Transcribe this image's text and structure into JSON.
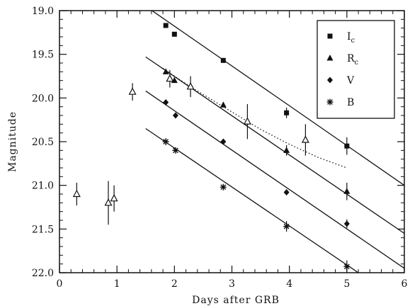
{
  "chart_data": {
    "type": "scatter",
    "title": "",
    "xlabel": "Days after GRB",
    "ylabel": "Magnitude",
    "xlim": [
      0,
      6
    ],
    "ylim": [
      22.0,
      19.0
    ],
    "y_inverted": true,
    "x_ticks": [
      "0",
      "1",
      "2",
      "3",
      "4",
      "5",
      "6"
    ],
    "y_ticks": [
      "19.0",
      "19.5",
      "20.0",
      "20.5",
      "21.0",
      "21.5",
      "22.0"
    ],
    "grid": false,
    "legend_position": "top-right",
    "legend": [
      {
        "name": "I",
        "sub": "c",
        "marker": "square"
      },
      {
        "name": "R",
        "sub": "c",
        "marker": "triangle"
      },
      {
        "name": "V",
        "sub": "",
        "marker": "diamond"
      },
      {
        "name": "B",
        "sub": "",
        "marker": "asterisk"
      }
    ],
    "series": [
      {
        "key": "Ic",
        "marker": "square",
        "x": [
          1.85,
          2.0,
          2.85,
          3.95,
          5.0
        ],
        "y": [
          19.17,
          19.27,
          19.57,
          20.17,
          20.55
        ],
        "err": [
          0,
          0,
          0,
          0.06,
          0.1
        ],
        "fit": [
          [
            1.5,
            18.95
          ],
          [
            6.0,
            21.0
          ]
        ]
      },
      {
        "key": "Rc",
        "marker": "triangle",
        "x": [
          1.85,
          2.0,
          2.85,
          3.95,
          5.0
        ],
        "y": [
          19.7,
          19.8,
          20.08,
          20.6,
          21.07
        ],
        "err": [
          0,
          0,
          0,
          0.06,
          0.1
        ],
        "fit": [
          [
            1.5,
            19.53
          ],
          [
            6.0,
            21.55
          ]
        ]
      },
      {
        "key": "Rc_open",
        "marker": "open-triangle",
        "x": [
          0.3,
          0.85,
          0.95,
          1.27,
          1.92,
          2.28,
          3.27,
          4.28
        ],
        "y": [
          21.1,
          21.2,
          21.15,
          19.93,
          19.78,
          19.87,
          20.27,
          20.48
        ],
        "err": [
          0.13,
          0.25,
          0.15,
          0.1,
          0.1,
          0.12,
          0.2,
          0.18
        ]
      },
      {
        "key": "V",
        "marker": "diamond",
        "x": [
          1.85,
          2.02,
          2.85,
          3.95,
          5.0
        ],
        "y": [
          20.05,
          20.2,
          20.5,
          21.08,
          21.44
        ],
        "err": [
          0,
          0,
          0,
          0,
          0.05
        ],
        "fit": [
          [
            1.5,
            19.92
          ],
          [
            6.0,
            21.95
          ]
        ]
      },
      {
        "key": "B",
        "marker": "asterisk",
        "x": [
          1.85,
          2.02,
          2.85,
          3.95,
          5.0
        ],
        "y": [
          20.5,
          20.6,
          21.02,
          21.47,
          21.93
        ],
        "err": [
          0.04,
          0,
          0,
          0.06,
          0.07
        ],
        "fit": [
          [
            1.5,
            20.35
          ],
          [
            5.2,
            22.0
          ]
        ]
      }
    ],
    "model_curve": {
      "style": "dotted",
      "x": [
        1.8,
        2.0,
        2.3,
        2.6,
        3.0,
        3.5,
        4.0,
        4.5,
        5.0
      ],
      "y": [
        19.66,
        19.75,
        19.88,
        20.0,
        20.16,
        20.36,
        20.53,
        20.68,
        20.8
      ]
    }
  }
}
